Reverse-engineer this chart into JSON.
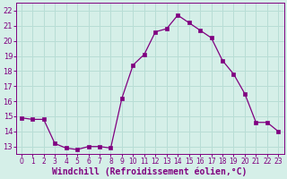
{
  "x": [
    0,
    1,
    2,
    3,
    4,
    5,
    6,
    7,
    8,
    9,
    10,
    11,
    12,
    13,
    14,
    15,
    16,
    17,
    18,
    19,
    20,
    21,
    22,
    23
  ],
  "y": [
    14.9,
    14.8,
    14.8,
    13.2,
    12.9,
    12.8,
    13.0,
    13.0,
    12.9,
    16.2,
    18.4,
    19.1,
    20.6,
    20.8,
    21.7,
    21.2,
    20.7,
    20.2,
    18.7,
    17.8,
    16.5,
    14.6,
    14.6,
    14.0
  ],
  "line_color": "#800080",
  "marker_color": "#800080",
  "bg_color": "#d5efe8",
  "grid_color": "#b8ddd5",
  "xlabel": "Windchill (Refroidissement éolien,°C)",
  "xlabel_color": "#800080",
  "tick_color": "#800080",
  "spine_color": "#800080",
  "ylim": [
    12.5,
    22.5
  ],
  "xlim": [
    -0.5,
    23.5
  ],
  "yticks": [
    13,
    14,
    15,
    16,
    17,
    18,
    19,
    20,
    21,
    22
  ],
  "xticks": [
    0,
    1,
    2,
    3,
    4,
    5,
    6,
    7,
    8,
    9,
    10,
    11,
    12,
    13,
    14,
    15,
    16,
    17,
    18,
    19,
    20,
    21,
    22,
    23
  ],
  "xtick_fontsize": 5.5,
  "ytick_fontsize": 6.0,
  "xlabel_fontsize": 7.0
}
